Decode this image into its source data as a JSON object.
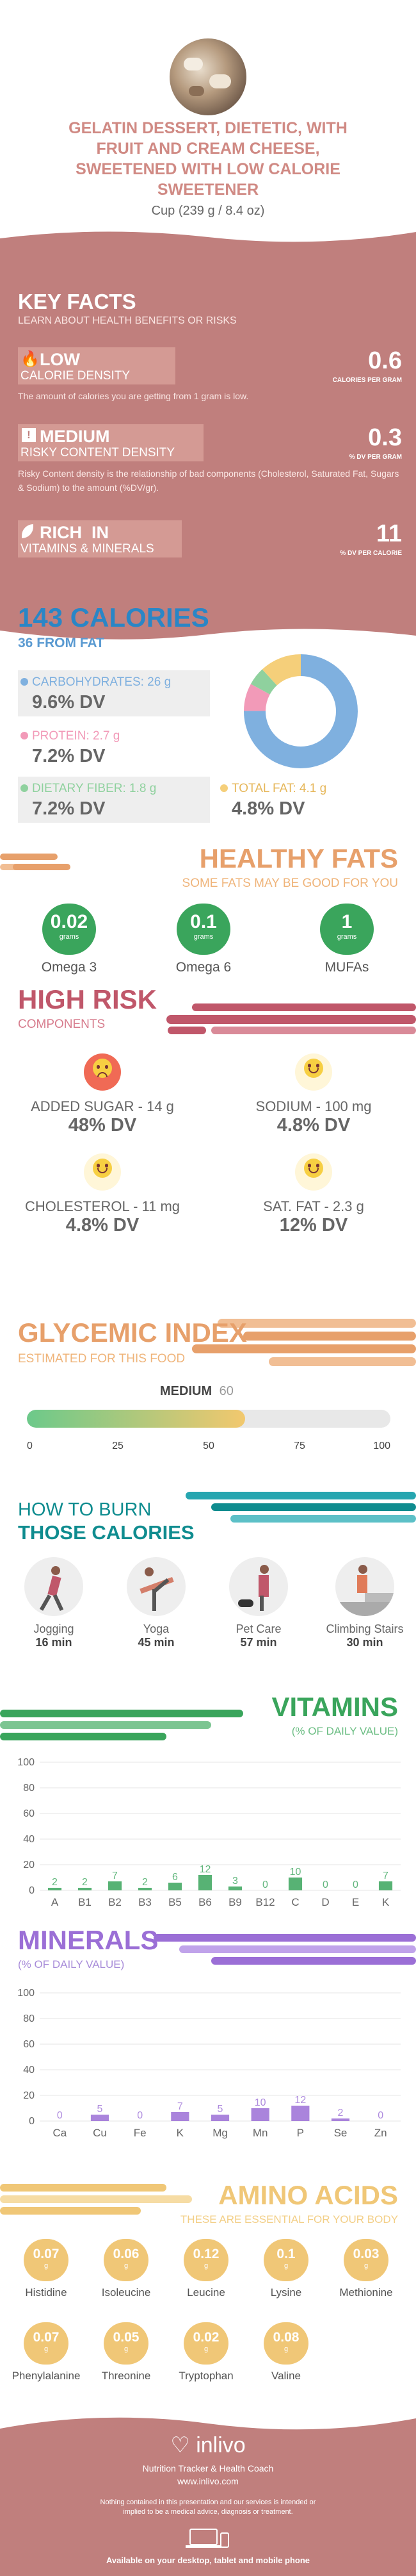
{
  "header": {
    "title": "GELATIN DESSERT, DIETETIC, WITH FRUIT AND CREAM CHEESE, SWEETENED WITH LOW CALORIE SWEETENER",
    "serving": "Cup (239 g / 8.4 oz)"
  },
  "key_facts": {
    "title": "KEY FACTS",
    "subtitle": "LEARN ABOUT HEALTH BENEFITS OR RISKS",
    "items": [
      {
        "level": "LOW",
        "name": "CALORIE DENSITY",
        "value": "0.6",
        "unit": "CALORIES PER GRAM",
        "desc": "The amount of calories you are getting from 1 gram is low."
      },
      {
        "level": "MEDIUM",
        "name": "RISKY CONTENT DENSITY",
        "value": "0.3",
        "unit": "% DV PER GRAM",
        "desc": "Risky Content density is the relationship of bad components (Cholesterol, Saturated Fat, Sugars & Sodium) to the amount (%DV/gr)."
      },
      {
        "level": "RICH  IN",
        "name": "VITAMINS & MINERALS",
        "value": "11",
        "unit": "% DV PER CALORIE",
        "desc": ""
      }
    ]
  },
  "calories": {
    "title": "143 CALORIES",
    "from_fat": "36 FROM FAT",
    "macros": [
      {
        "label": "CARBOHYDRATES: 26 g",
        "dv": "9.6% DV",
        "color": "#7fb0df"
      },
      {
        "label": "PROTEIN: 2.7 g",
        "dv": "7.2% DV",
        "color": "#f29ab8"
      },
      {
        "label": "DIETARY FIBER: 1.8 g",
        "dv": "7.2% DV",
        "color": "#8fd19e"
      },
      {
        "label": "TOTAL FAT: 4.1 g",
        "dv": "4.8% DV",
        "color": "#f5cf7a"
      }
    ],
    "donut": [
      {
        "name": "carbohydrates",
        "value": 26,
        "color": "#7fb0df"
      },
      {
        "name": "protein",
        "value": 2.7,
        "color": "#f29ab8"
      },
      {
        "name": "fiber",
        "value": 1.8,
        "color": "#8fd19e"
      },
      {
        "name": "fat",
        "value": 4.1,
        "color": "#f5cf7a"
      }
    ]
  },
  "healthy_fats": {
    "title": "HEALTHY FATS",
    "subtitle": "SOME FATS MAY BE GOOD FOR YOU",
    "items": [
      {
        "value": "0.02",
        "unit": "grams",
        "name": "Omega 3"
      },
      {
        "value": "0.1",
        "unit": "grams",
        "name": "Omega 6"
      },
      {
        "value": "1",
        "unit": "grams",
        "name": "MUFAs"
      }
    ]
  },
  "high_risk": {
    "title": "HIGH RISK",
    "subtitle": "COMPONENTS",
    "items": [
      {
        "label": "ADDED SUGAR - 14 g",
        "dv": "48% DV",
        "mood": "sad"
      },
      {
        "label": "SODIUM - 100 mg",
        "dv": "4.8% DV",
        "mood": "happy"
      },
      {
        "label": "CHOLESTEROL - 11 mg",
        "dv": "4.8% DV",
        "mood": "happy"
      },
      {
        "label": "SAT. FAT - 2.3 g",
        "dv": "12% DV",
        "mood": "happy"
      }
    ]
  },
  "glycemic": {
    "title": "GLYCEMIC INDEX",
    "subtitle": "ESTIMATED FOR THIS FOOD",
    "level": "MEDIUM",
    "value": "60",
    "gi_value": 60,
    "ticks": [
      "0",
      "25",
      "50",
      "75",
      "100"
    ]
  },
  "burn": {
    "title1": "HOW TO BURN",
    "title2": "THOSE CALORIES",
    "items": [
      {
        "name": "Jogging",
        "time": "16 min"
      },
      {
        "name": "Yoga",
        "time": "45 min"
      },
      {
        "name": "Pet Care",
        "time": "57 min"
      },
      {
        "name": "Climbing Stairs",
        "time": "30 min"
      }
    ]
  },
  "vitamins": {
    "title": "VITAMINS",
    "subtitle": "(% OF DAILY VALUE)"
  },
  "minerals": {
    "title": "MINERALS",
    "subtitle": "(% OF DAILY VALUE)"
  },
  "chart_data": [
    {
      "type": "bar",
      "title": "VITAMINS",
      "ylabel": "(% OF DAILY VALUE)",
      "categories": [
        "A",
        "B1",
        "B2",
        "B3",
        "B5",
        "B6",
        "B9",
        "B12",
        "C",
        "D",
        "E",
        "K"
      ],
      "values": [
        2,
        2,
        7,
        2,
        6,
        12,
        3,
        0,
        10,
        0,
        0,
        7
      ],
      "ylim": [
        0,
        100
      ],
      "yticks": [
        0,
        20,
        40,
        60,
        80,
        100
      ],
      "color": "#3aa55c"
    },
    {
      "type": "bar",
      "title": "MINERALS",
      "ylabel": "(% OF DAILY VALUE)",
      "categories": [
        "Ca",
        "Cu",
        "Fe",
        "K",
        "Mg",
        "Mn",
        "P",
        "Se",
        "Zn"
      ],
      "values": [
        0,
        5,
        0,
        7,
        5,
        10,
        12,
        2,
        0
      ],
      "ylim": [
        0,
        100
      ],
      "yticks": [
        0,
        20,
        40,
        60,
        80,
        100
      ],
      "color": "#9b6fd6"
    }
  ],
  "amino": {
    "title": "AMINO ACIDS",
    "subtitle": "THESE ARE ESSENTIAL FOR YOUR BODY",
    "unit": "g",
    "items": [
      {
        "value": "0.07",
        "name": "Histidine"
      },
      {
        "value": "0.06",
        "name": "Isoleucine"
      },
      {
        "value": "0.12",
        "name": "Leucine"
      },
      {
        "value": "0.1",
        "name": "Lysine"
      },
      {
        "value": "0.03",
        "name": "Methionine"
      },
      {
        "value": "0.07",
        "name": "Phenylalanine"
      },
      {
        "value": "0.05",
        "name": "Threonine"
      },
      {
        "value": "0.02",
        "name": "Tryptophan"
      },
      {
        "value": "0.08",
        "name": "Valine"
      }
    ]
  },
  "footer": {
    "brand": "inlivo",
    "tagline": "Nutrition Tracker & Health Coach",
    "url": "www.inlivo.com",
    "disclaimer": "Nothing contained in this presentation and our services is intended or implied to be a medical advice, diagnosis or treatment.",
    "available": "Available on your desktop, tablet and mobile phone"
  },
  "colors": {
    "rose": "#c07f7d",
    "green": "#3aa55c",
    "purple": "#9b6fd6",
    "orange": "#e7a06b",
    "teal": "#0f8c8f",
    "amino": "#f0c777"
  }
}
